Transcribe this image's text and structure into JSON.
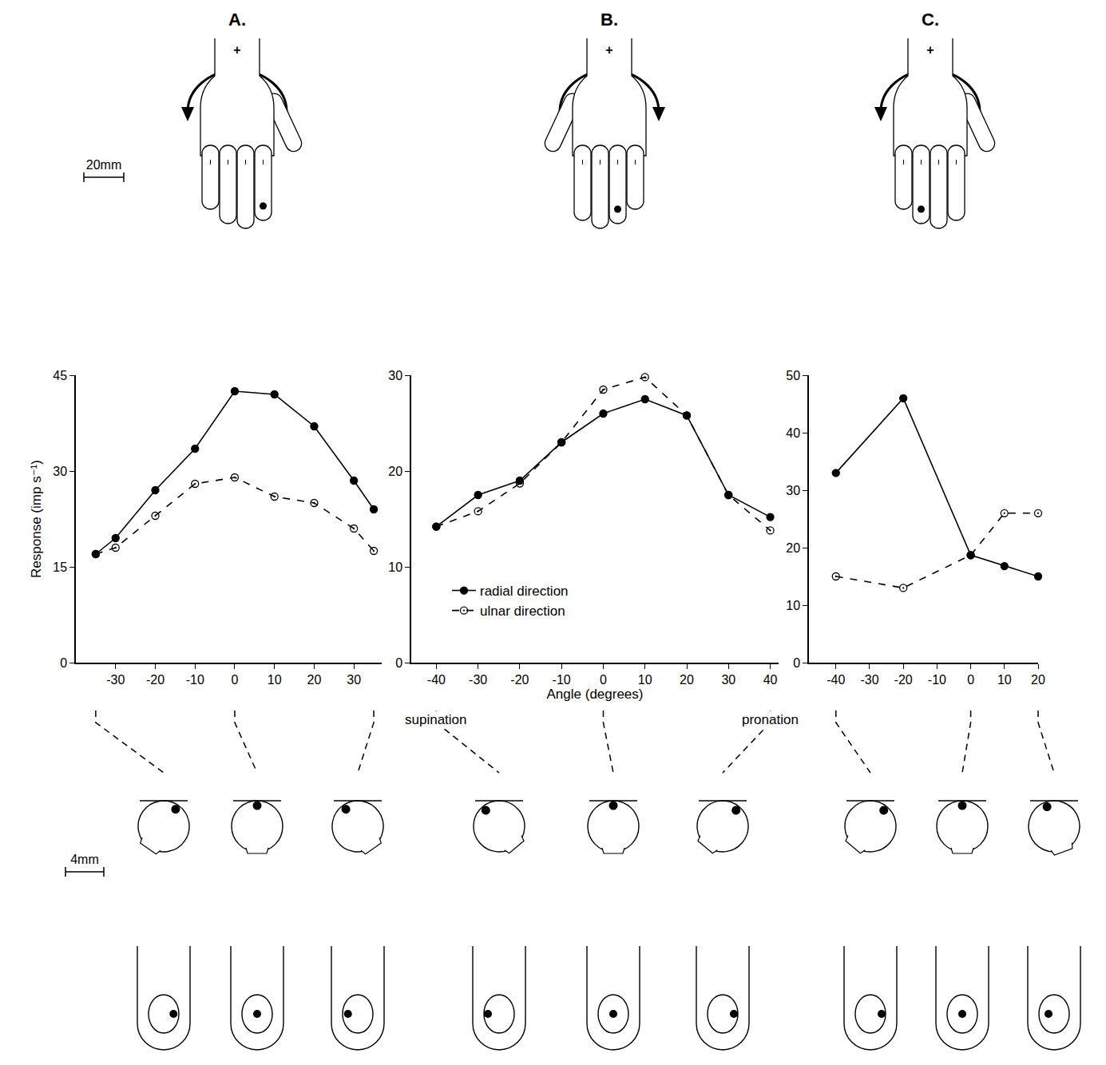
{
  "chart_data": [
    {
      "type": "line",
      "title": "A.",
      "ylabel": "Response (imp s⁻¹)",
      "x": [
        -35,
        -30,
        -20,
        -10,
        0,
        10,
        20,
        30,
        35
      ],
      "series": [
        {
          "name": "radial direction",
          "color": "#000000",
          "marker": "filled_circle",
          "line_style": "solid",
          "values": [
            17,
            19.5,
            27,
            33.5,
            42.5,
            42,
            37,
            28.5,
            24
          ]
        },
        {
          "name": "ulnar direction",
          "color": "#000000",
          "marker": "open_dot_circle",
          "line_style": "dashed",
          "values": [
            17,
            18,
            23,
            28,
            29,
            26,
            25,
            21,
            17.5
          ]
        }
      ],
      "xlim": [
        -40,
        37
      ],
      "xticks": [
        -30,
        -20,
        -10,
        0,
        10,
        20,
        30
      ],
      "ylim": [
        0,
        45
      ],
      "yticks": [
        0,
        15,
        30,
        45
      ],
      "grid": false,
      "illustrated_angles": [
        -35,
        0,
        35
      ]
    },
    {
      "type": "line",
      "title": "B.",
      "xlabel": "Angle (degrees)",
      "x": [
        -40,
        -30,
        -20,
        -10,
        0,
        10,
        20,
        30,
        40
      ],
      "series": [
        {
          "name": "radial direction",
          "color": "#000000",
          "marker": "filled_circle",
          "line_style": "solid",
          "values": [
            14.2,
            17.5,
            19,
            23,
            26,
            27.5,
            25.8,
            17.5,
            15.2
          ]
        },
        {
          "name": "ulnar direction",
          "color": "#000000",
          "marker": "open_dot_circle",
          "line_style": "dashed",
          "values": [
            14.2,
            15.8,
            18.7,
            23,
            28.5,
            29.8,
            25.8,
            17.5,
            13.8
          ]
        }
      ],
      "xlim": [
        -46,
        42
      ],
      "xticks": [
        -40,
        -30,
        -20,
        -10,
        0,
        10,
        20,
        30,
        40
      ],
      "ylim": [
        0,
        30
      ],
      "yticks": [
        0,
        10,
        20,
        30
      ],
      "grid": false,
      "legend": "lower left",
      "annotations": [
        {
          "text": "supination",
          "x": -40
        },
        {
          "text": "pronation",
          "x": 40
        }
      ],
      "illustrated_angles": [
        -40,
        0,
        40
      ]
    },
    {
      "type": "line",
      "title": "C.",
      "x": [
        -40,
        -20,
        0,
        10,
        20
      ],
      "series": [
        {
          "name": "radial direction",
          "color": "#000000",
          "marker": "filled_circle",
          "line_style": "solid",
          "values": [
            33,
            46,
            18.7,
            16.8,
            15
          ]
        },
        {
          "name": "ulnar direction",
          "color": "#000000",
          "marker": "open_dot_circle",
          "line_style": "dashed",
          "values": [
            15,
            13,
            18.7,
            26,
            26
          ]
        }
      ],
      "xlim": [
        -48,
        20
      ],
      "xticks": [
        -40,
        -30,
        -20,
        -10,
        0,
        10,
        20
      ],
      "ylim": [
        0,
        50
      ],
      "yticks": [
        0,
        10,
        20,
        30,
        40,
        50
      ],
      "grid": false,
      "illustrated_angles": [
        -40,
        0,
        20
      ]
    }
  ],
  "illustrations": {
    "hand_scale_label": "20mm",
    "fingertip_scale_label": "4mm",
    "rotation_axis_mark": "+"
  }
}
